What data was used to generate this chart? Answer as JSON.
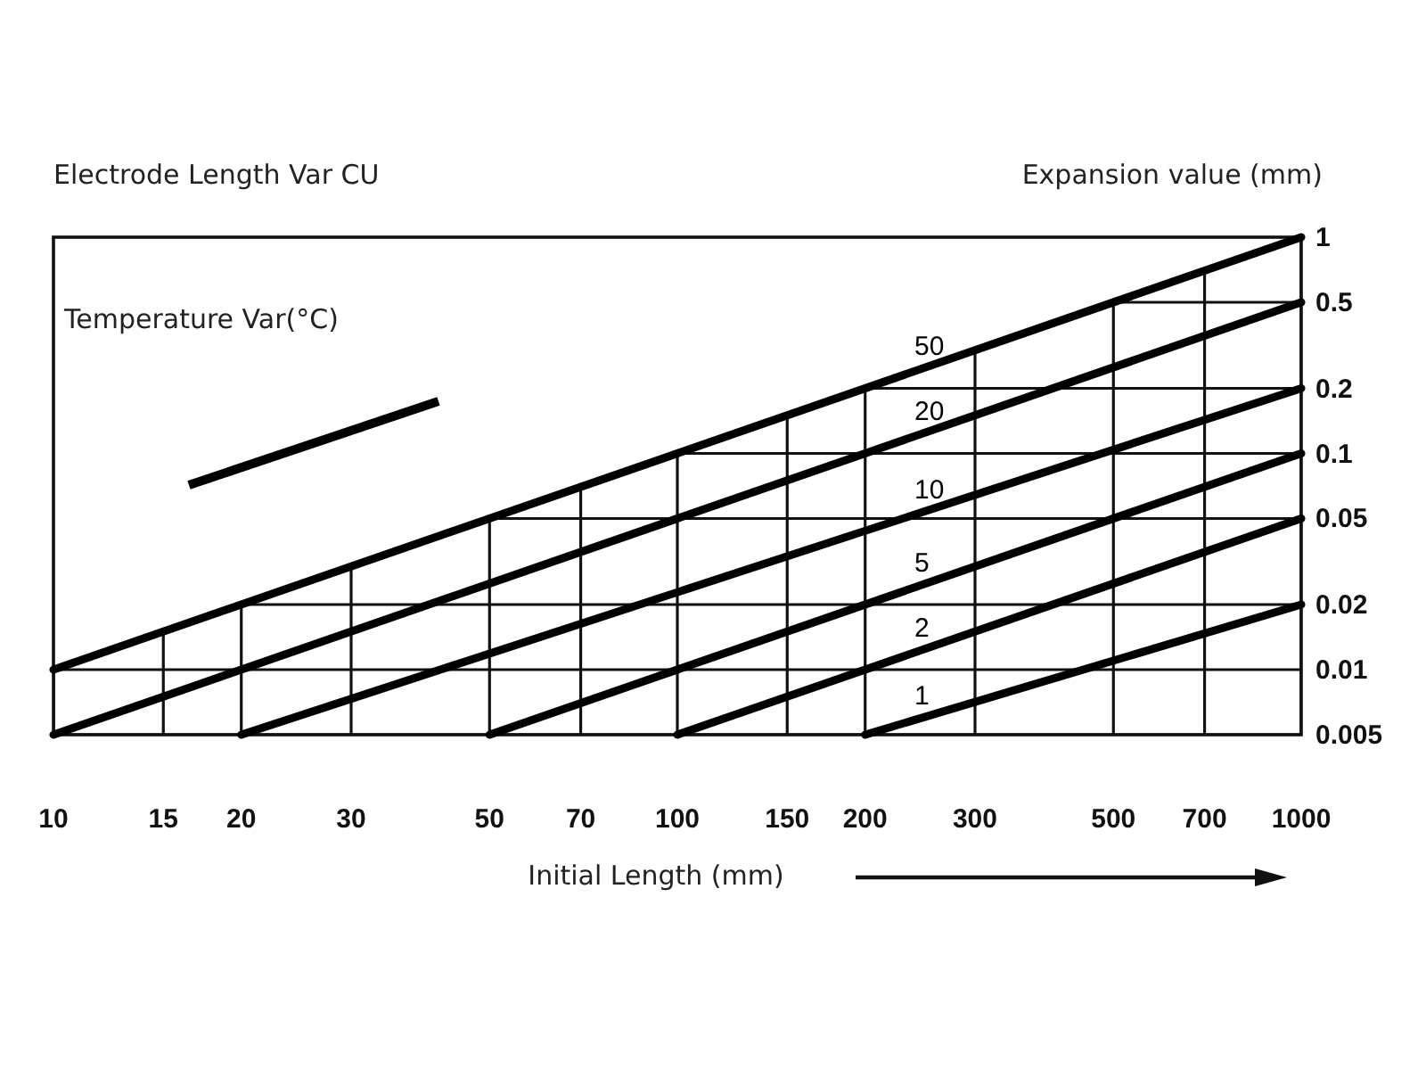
{
  "chart_data": {
    "type": "line",
    "title": "Electrode Length Var CU",
    "xlabel": "Initial Length (mm)",
    "ylabel": "Expansion value (mm)",
    "legend_title": "Temperature Var(°C)",
    "log": "xy",
    "xlim": [
      10,
      1000
    ],
    "ylim": [
      0.005,
      1
    ],
    "xticks": [
      10,
      15,
      20,
      30,
      50,
      70,
      100,
      150,
      200,
      300,
      500,
      700,
      1000
    ],
    "yticks": [
      0.005,
      0.01,
      0.02,
      0.05,
      0.1,
      0.2,
      0.5,
      1
    ],
    "grid": true,
    "series": [
      {
        "name": "50",
        "color": "#000000",
        "x": [
          10,
          1000
        ],
        "values": [
          0.01,
          1
        ]
      },
      {
        "name": "20",
        "color": "#000000",
        "x": [
          10,
          1000
        ],
        "values": [
          0.005,
          0.5
        ]
      },
      {
        "name": "10",
        "color": "#000000",
        "x": [
          20,
          1000
        ],
        "values": [
          0.005,
          0.2
        ]
      },
      {
        "name": "5",
        "color": "#000000",
        "x": [
          50,
          1000
        ],
        "values": [
          0.005,
          0.1
        ]
      },
      {
        "name": "2",
        "color": "#000000",
        "x": [
          100,
          1000
        ],
        "values": [
          0.005,
          0.05
        ]
      },
      {
        "name": "1",
        "color": "#000000",
        "x": [
          200,
          1000
        ],
        "values": [
          0.005,
          0.02
        ]
      }
    ]
  }
}
